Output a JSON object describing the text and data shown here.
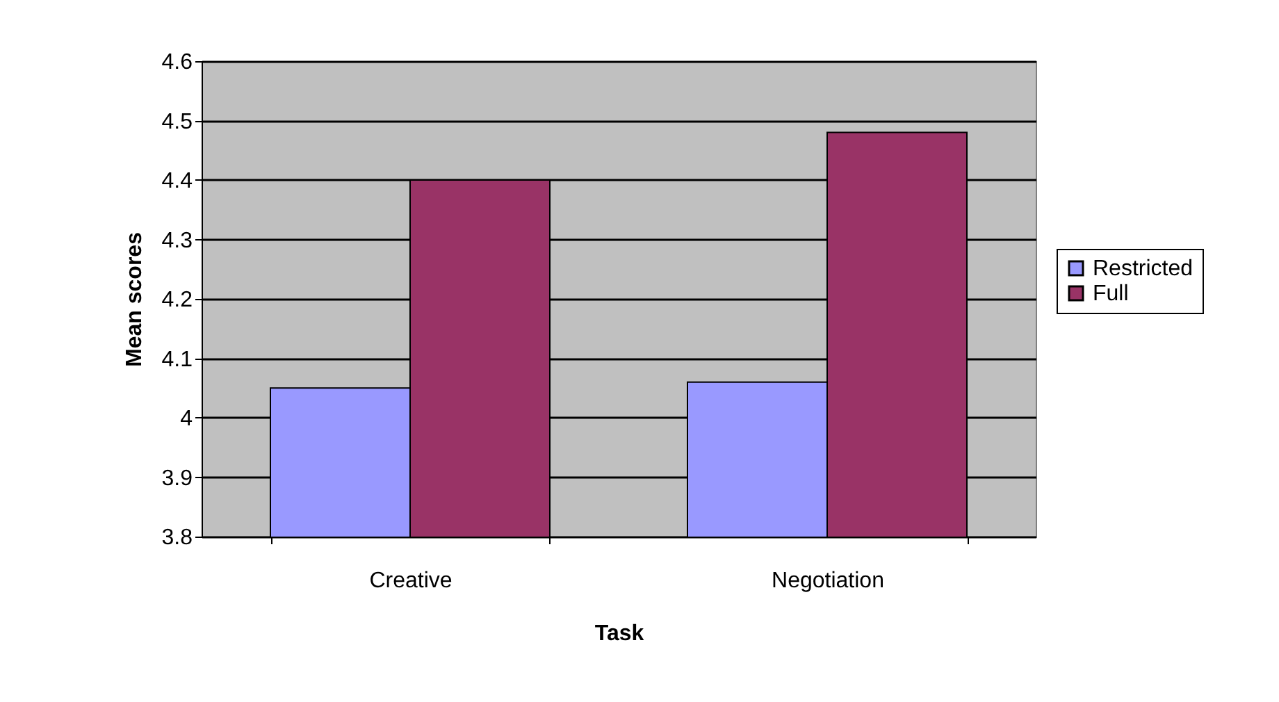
{
  "chart_data": {
    "type": "bar",
    "xlabel": "Task",
    "ylabel": "Mean scores",
    "categories": [
      "Creative",
      "Negotiation"
    ],
    "series": [
      {
        "name": "Restricted",
        "color": "#9999ff",
        "values": [
          4.05,
          4.06
        ]
      },
      {
        "name": "Full",
        "color": "#993366",
        "values": [
          4.4,
          4.48
        ]
      }
    ],
    "ylim": [
      3.8,
      4.6
    ],
    "yticks": [
      3.8,
      3.9,
      4,
      4.1,
      4.2,
      4.3,
      4.4,
      4.5,
      4.6
    ],
    "grid": "y",
    "legend": "right"
  }
}
